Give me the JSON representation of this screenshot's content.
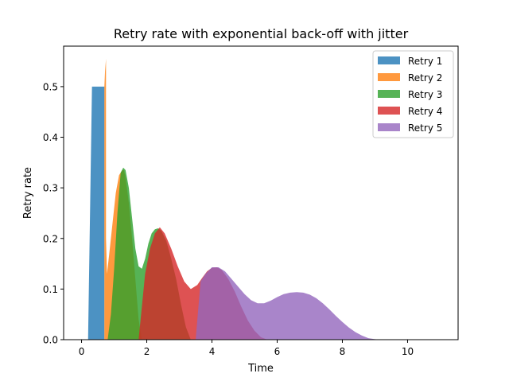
{
  "chart_data": {
    "type": "area",
    "stacked": true,
    "title": "Retry rate with exponential back-off with jitter",
    "xlabel": "Time",
    "ylabel": "Retry rate",
    "xlim": [
      -0.55,
      11.55
    ],
    "ylim": [
      0,
      0.58
    ],
    "xticks": [
      0,
      2,
      4,
      6,
      8,
      10
    ],
    "yticks": [
      0.0,
      0.1,
      0.2,
      0.3,
      0.4,
      0.5
    ],
    "xtick_labels": [
      "0",
      "2",
      "4",
      "6",
      "8",
      "10"
    ],
    "ytick_labels": [
      "0.0",
      "0.1",
      "0.2",
      "0.3",
      "0.4",
      "0.5"
    ],
    "grid": false,
    "legend_position": "top-right",
    "series": [
      {
        "name": "Retry 1",
        "color": "#1f77b4",
        "points": [
          [
            0.2,
            0
          ],
          [
            0.32,
            0.5
          ],
          [
            0.7,
            0.5
          ],
          [
            0.7,
            0
          ]
        ]
      },
      {
        "name": "Retry 2",
        "color": "#ff7f0e",
        "points": [
          [
            0.7,
            0.5
          ],
          [
            0.72,
            0.53
          ],
          [
            0.75,
            0.555
          ],
          [
            0.75,
            0.2
          ],
          [
            0.78,
            0.13
          ],
          [
            0.85,
            0.17
          ],
          [
            0.95,
            0.23
          ],
          [
            1.05,
            0.29
          ],
          [
            1.15,
            0.325
          ],
          [
            1.25,
            0.335
          ],
          [
            1.3,
            0.335
          ],
          [
            1.35,
            0.32
          ],
          [
            1.45,
            0.27
          ],
          [
            1.55,
            0.2
          ],
          [
            1.65,
            0.12
          ],
          [
            1.75,
            0.04
          ],
          [
            1.85,
            0
          ]
        ]
      },
      {
        "name": "Retry 3",
        "color": "#2ca02c",
        "points": [
          [
            0.8,
            0
          ],
          [
            0.9,
            0.05
          ],
          [
            1.0,
            0.14
          ],
          [
            1.1,
            0.25
          ],
          [
            1.2,
            0.33
          ],
          [
            1.28,
            0.34
          ],
          [
            1.35,
            0.335
          ],
          [
            1.45,
            0.3
          ],
          [
            1.55,
            0.24
          ],
          [
            1.65,
            0.18
          ],
          [
            1.75,
            0.145
          ],
          [
            1.85,
            0.14
          ],
          [
            1.95,
            0.16
          ],
          [
            2.05,
            0.19
          ],
          [
            2.15,
            0.21
          ],
          [
            2.25,
            0.218
          ],
          [
            2.35,
            0.22
          ],
          [
            2.45,
            0.215
          ],
          [
            2.6,
            0.195
          ],
          [
            2.75,
            0.16
          ],
          [
            2.9,
            0.12
          ],
          [
            3.05,
            0.07
          ],
          [
            3.2,
            0.025
          ],
          [
            3.35,
            0
          ]
        ]
      },
      {
        "name": "Retry 4",
        "color": "#d62728",
        "points": [
          [
            1.75,
            0
          ],
          [
            1.95,
            0.13
          ],
          [
            2.1,
            0.18
          ],
          [
            2.25,
            0.21
          ],
          [
            2.4,
            0.222
          ],
          [
            2.55,
            0.21
          ],
          [
            2.75,
            0.18
          ],
          [
            2.95,
            0.145
          ],
          [
            3.15,
            0.115
          ],
          [
            3.35,
            0.1
          ],
          [
            3.55,
            0.108
          ],
          [
            3.7,
            0.122
          ],
          [
            3.85,
            0.135
          ],
          [
            4.0,
            0.142
          ],
          [
            4.15,
            0.143
          ],
          [
            4.3,
            0.138
          ],
          [
            4.5,
            0.12
          ],
          [
            4.7,
            0.095
          ],
          [
            4.9,
            0.065
          ],
          [
            5.1,
            0.038
          ],
          [
            5.3,
            0.018
          ],
          [
            5.5,
            0.005
          ],
          [
            5.7,
            0
          ]
        ]
      },
      {
        "name": "Retry 5",
        "color": "#9467bd",
        "points": [
          [
            3.5,
            0
          ],
          [
            3.65,
            0.115
          ],
          [
            3.8,
            0.13
          ],
          [
            4.0,
            0.143
          ],
          [
            4.2,
            0.143
          ],
          [
            4.4,
            0.135
          ],
          [
            4.6,
            0.12
          ],
          [
            4.8,
            0.105
          ],
          [
            5.0,
            0.09
          ],
          [
            5.2,
            0.078
          ],
          [
            5.4,
            0.072
          ],
          [
            5.6,
            0.072
          ],
          [
            5.8,
            0.077
          ],
          [
            6.0,
            0.084
          ],
          [
            6.2,
            0.09
          ],
          [
            6.4,
            0.093
          ],
          [
            6.6,
            0.094
          ],
          [
            6.8,
            0.093
          ],
          [
            7.0,
            0.089
          ],
          [
            7.2,
            0.082
          ],
          [
            7.4,
            0.072
          ],
          [
            7.6,
            0.06
          ],
          [
            7.8,
            0.047
          ],
          [
            8.0,
            0.035
          ],
          [
            8.2,
            0.024
          ],
          [
            8.4,
            0.015
          ],
          [
            8.6,
            0.008
          ],
          [
            8.8,
            0.003
          ],
          [
            9.0,
            0.001
          ],
          [
            9.2,
            0
          ]
        ]
      }
    ]
  }
}
